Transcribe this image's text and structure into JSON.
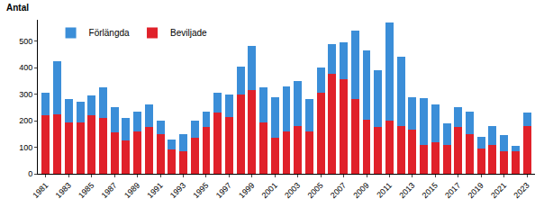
{
  "chart_data": {
    "type": "bar",
    "stacked": true,
    "ylabel": "Antal",
    "categories": [
      "1981",
      null,
      "1983",
      null,
      "1985",
      null,
      "1987",
      null,
      "1989",
      null,
      "1991",
      null,
      "1993",
      null,
      "1995",
      null,
      "1997",
      null,
      "1999",
      null,
      "2001",
      null,
      "2003",
      null,
      "2005",
      null,
      "2007",
      null,
      "2009",
      null,
      "2011",
      null,
      "2013",
      null,
      "2015",
      null,
      "2017",
      null,
      "2019",
      null,
      "2021",
      null,
      "2023"
    ],
    "series": [
      {
        "name": "Beviljade",
        "color": "#e0212a",
        "values": [
          220,
          225,
          195,
          195,
          220,
          210,
          155,
          125,
          160,
          175,
          150,
          90,
          85,
          135,
          175,
          230,
          215,
          300,
          315,
          195,
          135,
          160,
          180,
          160,
          305,
          375,
          355,
          280,
          205,
          175,
          200,
          180,
          165,
          110,
          120,
          110,
          175,
          150,
          95,
          110,
          85,
          85,
          180
        ]
      },
      {
        "name": "Förlängda",
        "color": "#3b8ed8",
        "values": [
          85,
          200,
          85,
          75,
          75,
          115,
          95,
          85,
          75,
          85,
          50,
          40,
          65,
          65,
          60,
          75,
          85,
          105,
          165,
          130,
          155,
          170,
          170,
          120,
          95,
          115,
          140,
          260,
          260,
          215,
          370,
          260,
          125,
          175,
          140,
          80,
          75,
          85,
          45,
          70,
          60,
          20,
          50
        ]
      }
    ],
    "ylim": [
      0,
      580
    ],
    "yticks": [
      0,
      100,
      200,
      300,
      400,
      500
    ],
    "grid": false,
    "legend": "top left"
  }
}
